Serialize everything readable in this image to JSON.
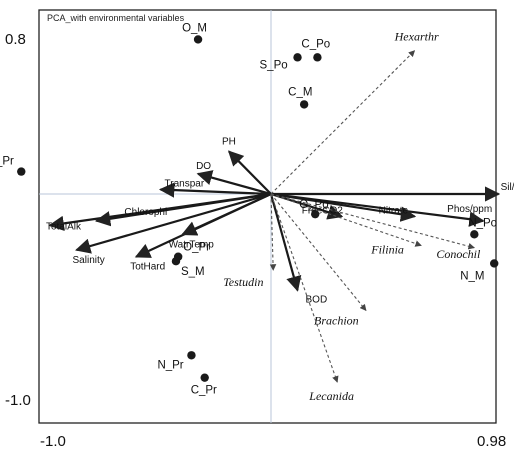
{
  "chart_data": {
    "type": "scatter",
    "title": "PCA_with environmental variables",
    "xlim": [
      -1.0,
      0.98
    ],
    "ylim": [
      -1.0,
      0.8
    ],
    "x_ticks": [
      "-1.0",
      "0.98"
    ],
    "y_ticks": [
      "0.8",
      "-1.0"
    ],
    "grid": false,
    "sites": [
      {
        "label": "O_M",
        "x": -0.33,
        "y": 0.69
      },
      {
        "label": "S_Po",
        "x": 0.12,
        "y": 0.61
      },
      {
        "label": "C_Po",
        "x": 0.21,
        "y": 0.61
      },
      {
        "label": "C_M",
        "x": 0.15,
        "y": 0.4
      },
      {
        "label": "S_Pr",
        "x": -1.13,
        "y": 0.1
      },
      {
        "label": "O_Pr",
        "x": -0.42,
        "y": -0.28
      },
      {
        "label": "S_M",
        "x": -0.43,
        "y": -0.3
      },
      {
        "label": "O_Po",
        "x": 0.2,
        "y": -0.09
      },
      {
        "label": "N_Po",
        "x": 0.92,
        "y": -0.18
      },
      {
        "label": "N_M",
        "x": 1.01,
        "y": -0.31
      },
      {
        "label": "N_Pr",
        "x": -0.36,
        "y": -0.72
      },
      {
        "label": "C_Pr",
        "x": -0.3,
        "y": -0.82
      }
    ],
    "environmental_vectors": [
      {
        "label": "TotalAlk",
        "x": -1.0,
        "y": -0.14
      },
      {
        "label": "Chlorophl",
        "x": -0.79,
        "y": -0.12
      },
      {
        "label": "Salinity",
        "x": -0.88,
        "y": -0.25
      },
      {
        "label": "TotHard",
        "x": -0.61,
        "y": -0.28
      },
      {
        "label": "WatrTemp",
        "x": -0.4,
        "y": -0.18
      },
      {
        "label": "Transpar",
        "x": -0.5,
        "y": 0.02
      },
      {
        "label": "DO",
        "x": -0.33,
        "y": 0.09
      },
      {
        "label": "PH",
        "x": -0.19,
        "y": 0.19
      },
      {
        "label": "Sil/ppm",
        "x": 1.03,
        "y": 0.0
      },
      {
        "label": "Phos/ppm",
        "x": 0.96,
        "y": -0.12
      },
      {
        "label": "FreeCO2",
        "x": 0.32,
        "y": -0.1
      },
      {
        "label": "Nitrate",
        "x": 0.65,
        "y": -0.1
      },
      {
        "label": "BOD",
        "x": 0.12,
        "y": -0.43
      }
    ],
    "species_vectors": [
      {
        "label": "Hexarthr",
        "x": 0.65,
        "y": 0.64
      },
      {
        "label": "Testudin",
        "x": 0.01,
        "y": -0.34
      },
      {
        "label": "Filinia",
        "x": 0.68,
        "y": -0.23
      },
      {
        "label": "Conochil",
        "x": 0.92,
        "y": -0.24
      },
      {
        "label": "Brachion",
        "x": 0.43,
        "y": -0.52
      },
      {
        "label": "Lecanida",
        "x": 0.3,
        "y": -0.84
      }
    ]
  }
}
